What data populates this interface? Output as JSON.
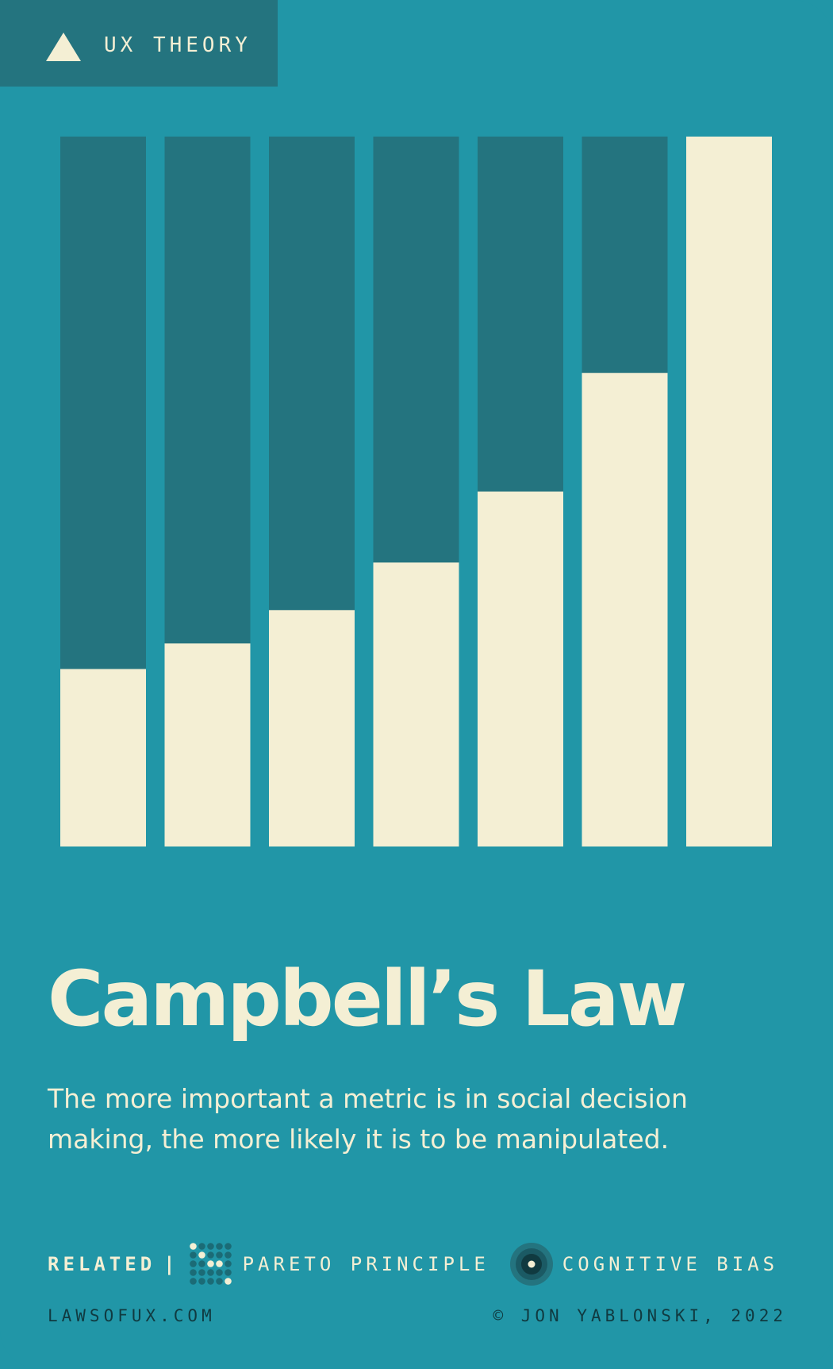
{
  "category": {
    "label": "UX THEORY",
    "icon": "triangle-icon"
  },
  "chart_data": {
    "type": "bar",
    "values": [
      0.25,
      0.286,
      0.333,
      0.4,
      0.5,
      0.667,
      1.0
    ],
    "ylim": [
      0,
      1
    ],
    "grid": false,
    "legend": "none"
  },
  "law": {
    "title": "Campbell’s Law",
    "description": "The more important a metric is in social decision making, the more likely it is to be manipulated."
  },
  "related": {
    "label": "RELATED",
    "separator": "|",
    "items": [
      {
        "label": "PARETO PRINCIPLE",
        "icon": "pareto-dots-icon"
      },
      {
        "label": "COGNITIVE BIAS",
        "icon": "eye-icon"
      }
    ]
  },
  "footer": {
    "site": "LAWSOFUX.COM",
    "copyright": "© JON YABLONSKI, 2022"
  },
  "colors": {
    "background": "#2196a7",
    "bar_dark": "#24747f",
    "cream": "#f4efd4",
    "ink": "#103a40"
  }
}
